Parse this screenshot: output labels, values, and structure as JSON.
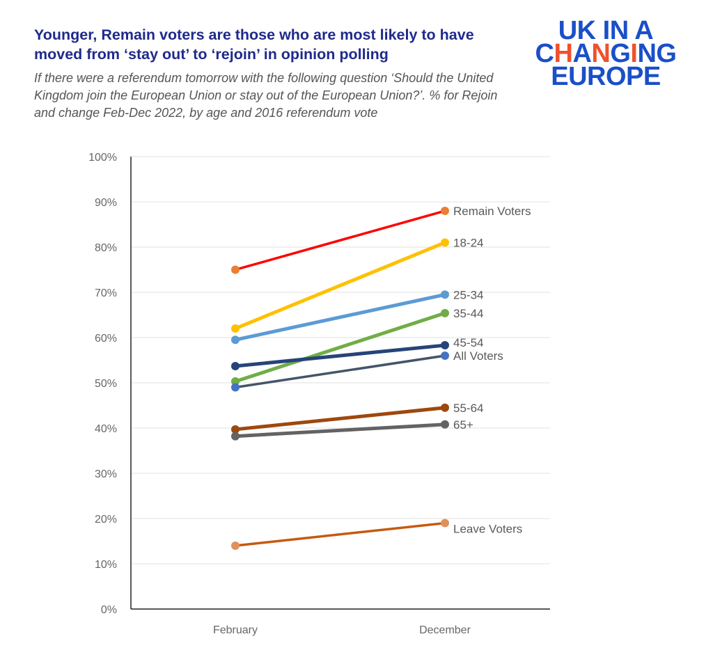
{
  "title": "Younger, Remain voters are those who are most likely to have moved from ‘stay out’ to ‘rejoin’ in opinion polling",
  "subtitle": "If there were a referendum tomorrow with the following question ‘Should the United Kingdom join the European Union or stay out of the European Union?’. % for Rejoin and change Feb-Dec 2022, by age and 2016 referendum vote",
  "logo": {
    "text": "UK IN A CHANGING EUROPE",
    "colors": {
      "main": "#1A4FC8",
      "accent": "#F0502D"
    }
  },
  "chart_data": {
    "type": "line",
    "categories": [
      "February",
      "December"
    ],
    "ylim": [
      0,
      100
    ],
    "yticks": [
      "0%",
      "10%",
      "20%",
      "30%",
      "40%",
      "50%",
      "60%",
      "70%",
      "80%",
      "90%",
      "100%"
    ],
    "grid": true,
    "legend": "direct labels at right",
    "series": [
      {
        "name": "Remain Voters",
        "values": [
          75,
          88
        ],
        "color": "#FF0000",
        "marker": "#ED7D31"
      },
      {
        "name": "18-24",
        "values": [
          62,
          81
        ],
        "color": "#FFC000",
        "marker": "#FFC000"
      },
      {
        "name": "25-34",
        "values": [
          59.5,
          69.5
        ],
        "color": "#5B9BD5",
        "marker": "#5B9BD5"
      },
      {
        "name": "35-44",
        "values": [
          50.3,
          65.4
        ],
        "color": "#70AD47",
        "marker": "#70AD47"
      },
      {
        "name": "45-54",
        "values": [
          53.7,
          58.3
        ],
        "color": "#264478",
        "marker": "#264478"
      },
      {
        "name": "All Voters",
        "values": [
          49,
          56
        ],
        "color": "#44546A",
        "marker": "#4472C4"
      },
      {
        "name": "55-64",
        "values": [
          39.7,
          44.5
        ],
        "color": "#9E480E",
        "marker": "#9E480E"
      },
      {
        "name": "65+",
        "values": [
          38.2,
          40.8
        ],
        "color": "#636363",
        "marker": "#636363"
      },
      {
        "name": "Leave Voters",
        "values": [
          14,
          19
        ],
        "color": "#C55A11",
        "marker": "#E0915A"
      }
    ]
  }
}
